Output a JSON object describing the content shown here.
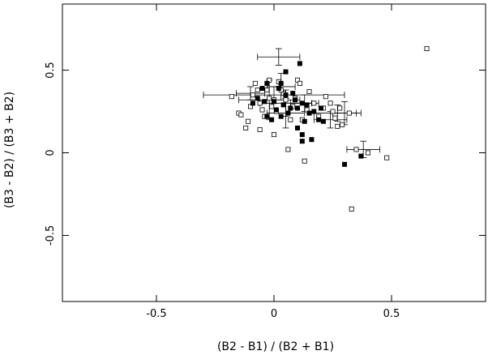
{
  "chart_data": {
    "type": "scatter",
    "title": "",
    "xlabel": "(B2 - B1) / (B2 + B1)",
    "ylabel": "(B3 - B2) / (B3 + B2)",
    "xlim": [
      -0.9,
      0.9
    ],
    "ylim": [
      -0.9,
      0.9
    ],
    "x_ticks": [
      -0.5,
      0,
      0.5
    ],
    "x_tick_labels": [
      "-0.5",
      "0",
      "0.5"
    ],
    "y_ticks": [
      -0.5,
      0,
      0.5
    ],
    "y_tick_labels": [
      "-0.5",
      "0",
      "0.5"
    ],
    "grid": false,
    "series": [
      {
        "marker": "open-square",
        "color": "#000000",
        "points": [
          [
            0.65,
            0.63
          ],
          [
            -0.18,
            0.34
          ],
          [
            -0.15,
            0.24
          ],
          [
            -0.14,
            0.23
          ],
          [
            -0.12,
            0.15
          ],
          [
            -0.11,
            0.19
          ],
          [
            -0.1,
            0.28
          ],
          [
            -0.09,
            0.35
          ],
          [
            -0.08,
            0.42
          ],
          [
            -0.07,
            0.38
          ],
          [
            -0.06,
            0.3
          ],
          [
            -0.05,
            0.26
          ],
          [
            -0.04,
            0.22
          ],
          [
            -0.03,
            0.38
          ],
          [
            -0.02,
            0.33
          ],
          [
            -0.01,
            0.28
          ],
          [
            0.0,
            0.11
          ],
          [
            0.01,
            0.25
          ],
          [
            0.02,
            0.43
          ],
          [
            0.04,
            0.36
          ],
          [
            0.05,
            0.32
          ],
          [
            0.06,
            0.02
          ],
          [
            0.07,
            0.2
          ],
          [
            0.08,
            0.28
          ],
          [
            0.09,
            0.33
          ],
          [
            0.1,
            0.44
          ],
          [
            0.11,
            0.42
          ],
          [
            0.12,
            0.2
          ],
          [
            0.13,
            -0.05
          ],
          [
            0.15,
            0.37
          ],
          [
            0.17,
            0.3
          ],
          [
            0.19,
            0.22
          ],
          [
            0.21,
            0.27
          ],
          [
            0.22,
            0.34
          ],
          [
            0.24,
            0.3
          ],
          [
            0.25,
            0.25
          ],
          [
            0.26,
            0.21
          ],
          [
            0.27,
            0.16
          ],
          [
            0.28,
            0.27
          ],
          [
            0.29,
            0.17
          ],
          [
            0.32,
            0.24
          ],
          [
            0.33,
            -0.34
          ],
          [
            0.35,
            0.02
          ],
          [
            0.4,
            0.0
          ],
          [
            0.48,
            -0.03
          ],
          [
            -0.02,
            0.44
          ],
          [
            0.03,
            0.38
          ],
          [
            0.0,
            0.32
          ],
          [
            0.14,
            0.26
          ],
          [
            -0.06,
            0.14
          ]
        ]
      },
      {
        "marker": "filled-square",
        "color": "#000000",
        "points": [
          [
            0.05,
            0.49
          ],
          [
            0.11,
            0.54
          ],
          [
            -0.03,
            0.42
          ],
          [
            0.03,
            0.42
          ],
          [
            -0.05,
            0.39
          ],
          [
            0.02,
            0.39
          ],
          [
            0.05,
            0.35
          ],
          [
            0.08,
            0.36
          ],
          [
            -0.07,
            0.33
          ],
          [
            -0.04,
            0.31
          ],
          [
            0.0,
            0.31
          ],
          [
            0.04,
            0.29
          ],
          [
            0.07,
            0.27
          ],
          [
            0.1,
            0.27
          ],
          [
            0.12,
            0.3
          ],
          [
            0.14,
            0.29
          ],
          [
            0.15,
            0.24
          ],
          [
            0.17,
            0.25
          ],
          [
            0.2,
            0.27
          ],
          [
            0.13,
            0.19
          ],
          [
            0.19,
            0.2
          ],
          [
            0.21,
            0.19
          ],
          [
            0.1,
            0.15
          ],
          [
            0.12,
            0.11
          ],
          [
            0.16,
            0.08
          ],
          [
            0.12,
            0.07
          ],
          [
            0.37,
            -0.02
          ],
          [
            0.3,
            -0.07
          ],
          [
            -0.03,
            0.22
          ],
          [
            0.06,
            0.24
          ],
          [
            0.01,
            0.26
          ],
          [
            -0.09,
            0.3
          ],
          [
            0.09,
            0.32
          ],
          [
            0.03,
            0.22
          ],
          [
            -0.01,
            0.2
          ]
        ]
      },
      {
        "marker": "error-bar",
        "color": "#000000",
        "points": [
          {
            "x": 0.02,
            "y": 0.58,
            "xerr": 0.09,
            "yerr": 0.05
          },
          {
            "x": 0.0,
            "y": 0.35,
            "xerr": 0.3,
            "yerr": 0.05
          },
          {
            "x": -0.02,
            "y": 0.32,
            "xerr": 0.13,
            "yerr": 0.12
          },
          {
            "x": 0.05,
            "y": 0.3,
            "xerr": 0.11,
            "yerr": 0.08
          },
          {
            "x": -0.1,
            "y": 0.36,
            "xerr": 0.06,
            "yerr": 0.04
          },
          {
            "x": 0.03,
            "y": 0.4,
            "xerr": 0.06,
            "yerr": 0.08
          },
          {
            "x": 0.3,
            "y": 0.24,
            "xerr": 0.05,
            "yerr": 0.07
          },
          {
            "x": 0.27,
            "y": 0.24,
            "xerr": 0.1,
            "yerr": 0.05
          },
          {
            "x": 0.24,
            "y": 0.2,
            "xerr": 0.07,
            "yerr": 0.05
          },
          {
            "x": 0.38,
            "y": 0.02,
            "xerr": 0.07,
            "yerr": 0.05
          },
          {
            "x": 0.05,
            "y": 0.24,
            "xerr": 0.08,
            "yerr": 0.09
          },
          {
            "x": 0.13,
            "y": 0.3,
            "xerr": 0.06,
            "yerr": 0.05
          }
        ]
      }
    ]
  }
}
